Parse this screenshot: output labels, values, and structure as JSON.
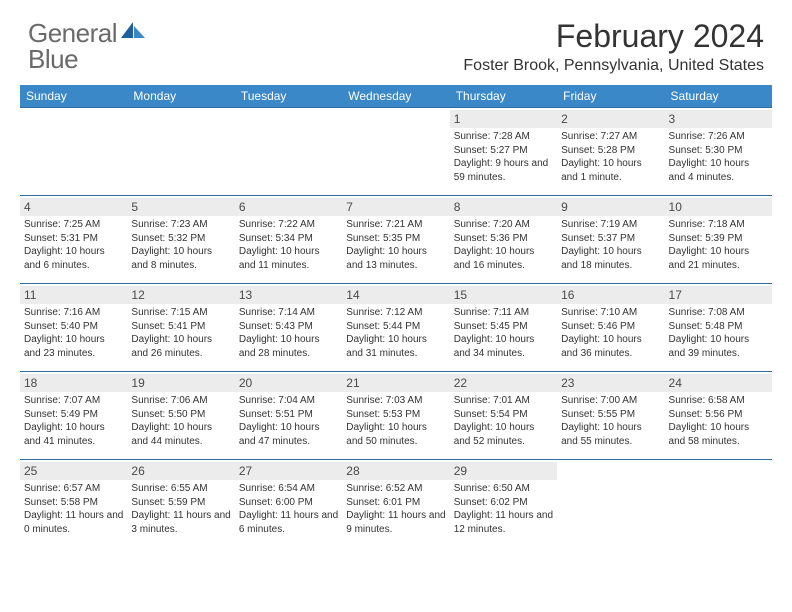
{
  "logo": {
    "text1": "General",
    "text2": "Blue"
  },
  "title": "February 2024",
  "location": "Foster Brook, Pennsylvania, United States",
  "day_headers": [
    "Sunday",
    "Monday",
    "Tuesday",
    "Wednesday",
    "Thursday",
    "Friday",
    "Saturday"
  ],
  "colors": {
    "header_bg": "#3b88c8",
    "row_border": "#2f6ea0",
    "date_bg": "#ececec",
    "logo_gray": "#6a6a6a",
    "logo_blue": "#2570b8"
  },
  "weeks": [
    [
      {
        "date": "",
        "sunrise": "",
        "sunset": "",
        "daylight": "",
        "empty": true
      },
      {
        "date": "",
        "sunrise": "",
        "sunset": "",
        "daylight": "",
        "empty": true
      },
      {
        "date": "",
        "sunrise": "",
        "sunset": "",
        "daylight": "",
        "empty": true
      },
      {
        "date": "",
        "sunrise": "",
        "sunset": "",
        "daylight": "",
        "empty": true
      },
      {
        "date": "1",
        "sunrise": "Sunrise: 7:28 AM",
        "sunset": "Sunset: 5:27 PM",
        "daylight": "Daylight: 9 hours and 59 minutes."
      },
      {
        "date": "2",
        "sunrise": "Sunrise: 7:27 AM",
        "sunset": "Sunset: 5:28 PM",
        "daylight": "Daylight: 10 hours and 1 minute."
      },
      {
        "date": "3",
        "sunrise": "Sunrise: 7:26 AM",
        "sunset": "Sunset: 5:30 PM",
        "daylight": "Daylight: 10 hours and 4 minutes."
      }
    ],
    [
      {
        "date": "4",
        "sunrise": "Sunrise: 7:25 AM",
        "sunset": "Sunset: 5:31 PM",
        "daylight": "Daylight: 10 hours and 6 minutes."
      },
      {
        "date": "5",
        "sunrise": "Sunrise: 7:23 AM",
        "sunset": "Sunset: 5:32 PM",
        "daylight": "Daylight: 10 hours and 8 minutes."
      },
      {
        "date": "6",
        "sunrise": "Sunrise: 7:22 AM",
        "sunset": "Sunset: 5:34 PM",
        "daylight": "Daylight: 10 hours and 11 minutes."
      },
      {
        "date": "7",
        "sunrise": "Sunrise: 7:21 AM",
        "sunset": "Sunset: 5:35 PM",
        "daylight": "Daylight: 10 hours and 13 minutes."
      },
      {
        "date": "8",
        "sunrise": "Sunrise: 7:20 AM",
        "sunset": "Sunset: 5:36 PM",
        "daylight": "Daylight: 10 hours and 16 minutes."
      },
      {
        "date": "9",
        "sunrise": "Sunrise: 7:19 AM",
        "sunset": "Sunset: 5:37 PM",
        "daylight": "Daylight: 10 hours and 18 minutes."
      },
      {
        "date": "10",
        "sunrise": "Sunrise: 7:18 AM",
        "sunset": "Sunset: 5:39 PM",
        "daylight": "Daylight: 10 hours and 21 minutes."
      }
    ],
    [
      {
        "date": "11",
        "sunrise": "Sunrise: 7:16 AM",
        "sunset": "Sunset: 5:40 PM",
        "daylight": "Daylight: 10 hours and 23 minutes."
      },
      {
        "date": "12",
        "sunrise": "Sunrise: 7:15 AM",
        "sunset": "Sunset: 5:41 PM",
        "daylight": "Daylight: 10 hours and 26 minutes."
      },
      {
        "date": "13",
        "sunrise": "Sunrise: 7:14 AM",
        "sunset": "Sunset: 5:43 PM",
        "daylight": "Daylight: 10 hours and 28 minutes."
      },
      {
        "date": "14",
        "sunrise": "Sunrise: 7:12 AM",
        "sunset": "Sunset: 5:44 PM",
        "daylight": "Daylight: 10 hours and 31 minutes."
      },
      {
        "date": "15",
        "sunrise": "Sunrise: 7:11 AM",
        "sunset": "Sunset: 5:45 PM",
        "daylight": "Daylight: 10 hours and 34 minutes."
      },
      {
        "date": "16",
        "sunrise": "Sunrise: 7:10 AM",
        "sunset": "Sunset: 5:46 PM",
        "daylight": "Daylight: 10 hours and 36 minutes."
      },
      {
        "date": "17",
        "sunrise": "Sunrise: 7:08 AM",
        "sunset": "Sunset: 5:48 PM",
        "daylight": "Daylight: 10 hours and 39 minutes."
      }
    ],
    [
      {
        "date": "18",
        "sunrise": "Sunrise: 7:07 AM",
        "sunset": "Sunset: 5:49 PM",
        "daylight": "Daylight: 10 hours and 41 minutes."
      },
      {
        "date": "19",
        "sunrise": "Sunrise: 7:06 AM",
        "sunset": "Sunset: 5:50 PM",
        "daylight": "Daylight: 10 hours and 44 minutes."
      },
      {
        "date": "20",
        "sunrise": "Sunrise: 7:04 AM",
        "sunset": "Sunset: 5:51 PM",
        "daylight": "Daylight: 10 hours and 47 minutes."
      },
      {
        "date": "21",
        "sunrise": "Sunrise: 7:03 AM",
        "sunset": "Sunset: 5:53 PM",
        "daylight": "Daylight: 10 hours and 50 minutes."
      },
      {
        "date": "22",
        "sunrise": "Sunrise: 7:01 AM",
        "sunset": "Sunset: 5:54 PM",
        "daylight": "Daylight: 10 hours and 52 minutes."
      },
      {
        "date": "23",
        "sunrise": "Sunrise: 7:00 AM",
        "sunset": "Sunset: 5:55 PM",
        "daylight": "Daylight: 10 hours and 55 minutes."
      },
      {
        "date": "24",
        "sunrise": "Sunrise: 6:58 AM",
        "sunset": "Sunset: 5:56 PM",
        "daylight": "Daylight: 10 hours and 58 minutes."
      }
    ],
    [
      {
        "date": "25",
        "sunrise": "Sunrise: 6:57 AM",
        "sunset": "Sunset: 5:58 PM",
        "daylight": "Daylight: 11 hours and 0 minutes."
      },
      {
        "date": "26",
        "sunrise": "Sunrise: 6:55 AM",
        "sunset": "Sunset: 5:59 PM",
        "daylight": "Daylight: 11 hours and 3 minutes."
      },
      {
        "date": "27",
        "sunrise": "Sunrise: 6:54 AM",
        "sunset": "Sunset: 6:00 PM",
        "daylight": "Daylight: 11 hours and 6 minutes."
      },
      {
        "date": "28",
        "sunrise": "Sunrise: 6:52 AM",
        "sunset": "Sunset: 6:01 PM",
        "daylight": "Daylight: 11 hours and 9 minutes."
      },
      {
        "date": "29",
        "sunrise": "Sunrise: 6:50 AM",
        "sunset": "Sunset: 6:02 PM",
        "daylight": "Daylight: 11 hours and 12 minutes."
      },
      {
        "date": "",
        "sunrise": "",
        "sunset": "",
        "daylight": "",
        "empty": true
      },
      {
        "date": "",
        "sunrise": "",
        "sunset": "",
        "daylight": "",
        "empty": true
      }
    ]
  ]
}
